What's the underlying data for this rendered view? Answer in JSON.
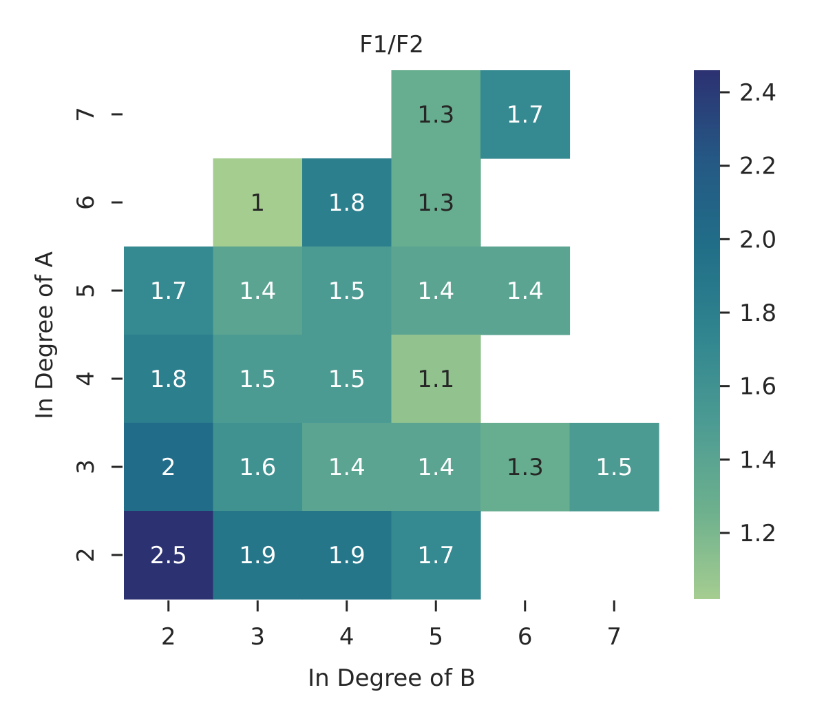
{
  "chart_data": {
    "type": "heatmap",
    "title": "F1/F2",
    "xlabel": "In Degree of B",
    "ylabel": "In Degree of A",
    "x_categories": [
      "2",
      "3",
      "4",
      "5",
      "6",
      "7"
    ],
    "y_categories": [
      "7",
      "6",
      "5",
      "4",
      "3",
      "2"
    ],
    "cells": [
      {
        "x": "5",
        "y": "7",
        "value": 1.3,
        "label": "1.3"
      },
      {
        "x": "6",
        "y": "7",
        "value": 1.7,
        "label": "1.7"
      },
      {
        "x": "3",
        "y": "6",
        "value": 1.0,
        "label": "1"
      },
      {
        "x": "4",
        "y": "6",
        "value": 1.8,
        "label": "1.8"
      },
      {
        "x": "5",
        "y": "6",
        "value": 1.3,
        "label": "1.3"
      },
      {
        "x": "2",
        "y": "5",
        "value": 1.7,
        "label": "1.7"
      },
      {
        "x": "3",
        "y": "5",
        "value": 1.4,
        "label": "1.4"
      },
      {
        "x": "4",
        "y": "5",
        "value": 1.5,
        "label": "1.5"
      },
      {
        "x": "5",
        "y": "5",
        "value": 1.4,
        "label": "1.4"
      },
      {
        "x": "6",
        "y": "5",
        "value": 1.4,
        "label": "1.4"
      },
      {
        "x": "2",
        "y": "4",
        "value": 1.8,
        "label": "1.8"
      },
      {
        "x": "3",
        "y": "4",
        "value": 1.5,
        "label": "1.5"
      },
      {
        "x": "4",
        "y": "4",
        "value": 1.5,
        "label": "1.5"
      },
      {
        "x": "5",
        "y": "4",
        "value": 1.1,
        "label": "1.1"
      },
      {
        "x": "2",
        "y": "3",
        "value": 2.0,
        "label": "2"
      },
      {
        "x": "3",
        "y": "3",
        "value": 1.6,
        "label": "1.6"
      },
      {
        "x": "4",
        "y": "3",
        "value": 1.4,
        "label": "1.4"
      },
      {
        "x": "5",
        "y": "3",
        "value": 1.4,
        "label": "1.4"
      },
      {
        "x": "6",
        "y": "3",
        "value": 1.3,
        "label": "1.3"
      },
      {
        "x": "7",
        "y": "3",
        "value": 1.5,
        "label": "1.5"
      },
      {
        "x": "2",
        "y": "2",
        "value": 2.5,
        "label": "2.5"
      },
      {
        "x": "3",
        "y": "2",
        "value": 1.9,
        "label": "1.9"
      },
      {
        "x": "4",
        "y": "2",
        "value": 1.9,
        "label": "1.9"
      },
      {
        "x": "5",
        "y": "2",
        "value": 1.7,
        "label": "1.7"
      }
    ],
    "colorbar": {
      "vmin": 1.02,
      "vmax": 2.46,
      "ticks": [
        "1.2",
        "1.4",
        "1.6",
        "1.8",
        "2.0",
        "2.2",
        "2.4"
      ],
      "colormap": "crest",
      "colors": [
        "#a5cd90",
        "#6db08e",
        "#4c9b93",
        "#30858f",
        "#216e88",
        "#255884",
        "#2c3172"
      ]
    },
    "grid": false,
    "legend": "colorbar-right"
  }
}
